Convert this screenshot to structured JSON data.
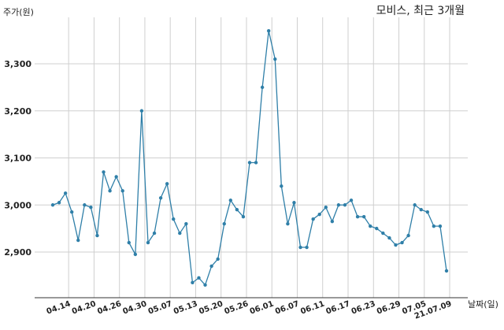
{
  "chart_data": {
    "type": "line",
    "title": "모비스, 최근 3개월",
    "ylabel": "주가(원)",
    "xlabel": "날짜(일)",
    "ylim": [
      2800,
      3380
    ],
    "yticks": [
      2900,
      3000,
      3100,
      3200,
      3300
    ],
    "ytick_labels": [
      "2,900",
      "3,000",
      "3,100",
      "3,200",
      "3,300"
    ],
    "x_tick_labels": [
      "04.14",
      "04.20",
      "04.26",
      "04.30",
      "05.07",
      "05.13",
      "05.20",
      "05.26",
      "06.01",
      "06.07",
      "06.11",
      "06.17",
      "06.23",
      "06.29",
      "07.05",
      "21.07.09"
    ],
    "x_tick_positions": [
      2.5,
      6.5,
      10.5,
      14.5,
      18.5,
      22.5,
      26.5,
      30.5,
      34.5,
      38.5,
      42.5,
      46.5,
      50.5,
      54.5,
      58.5,
      62.5
    ],
    "grid": true,
    "line_color": "#2f7fa8",
    "values": [
      3000,
      3005,
      3025,
      2985,
      2925,
      3000,
      2995,
      2935,
      3070,
      3030,
      3060,
      3030,
      2920,
      2895,
      3200,
      2920,
      2940,
      3015,
      3045,
      2970,
      2940,
      2960,
      2835,
      2845,
      2830,
      2870,
      2885,
      2960,
      3010,
      2990,
      2975,
      3090,
      3090,
      3250,
      3370,
      3310,
      3040,
      2960,
      3005,
      2910,
      2910,
      2970,
      2980,
      2995,
      2965,
      3000,
      3000,
      3010,
      2975,
      2975,
      2955,
      2950,
      2940,
      2930,
      2915,
      2920,
      2935,
      3000,
      2990,
      2985,
      2955,
      2955,
      2860
    ]
  }
}
